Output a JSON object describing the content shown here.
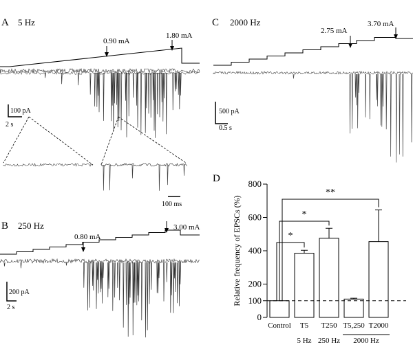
{
  "panels": {
    "a": {
      "letter": "A",
      "freq": "5 Hz",
      "current_low": "0.90 mA",
      "current_high": "1.80 mA",
      "scale_current": "100 pA",
      "scale_time": "2 s",
      "inset_scale": "100 ms"
    },
    "b": {
      "letter": "B",
      "freq": "250 Hz",
      "current_low": "0.80 mA",
      "current_high": "3.00 mA",
      "scale_current": "200 pA",
      "scale_time": "2 s"
    },
    "c": {
      "letter": "C",
      "freq": "2000 Hz",
      "current_low": "2.75 mA",
      "current_high": "3.70 mA",
      "scale_current": "500 pA",
      "scale_time": "0.5 s"
    },
    "d": {
      "letter": "D"
    }
  },
  "chart_data": {
    "type": "bar",
    "ylabel": "Relative frequency of EPSCs (%)",
    "ylim": [
      0,
      800
    ],
    "yticks": [
      0,
      100,
      200,
      400,
      600,
      800
    ],
    "categories": [
      "Control",
      "T5",
      "T250",
      "T5,250",
      "T2000"
    ],
    "values": [
      100,
      385,
      475,
      110,
      455
    ],
    "errors": [
      0,
      18,
      60,
      5,
      190
    ],
    "reference_line": 100,
    "group_labels": [
      {
        "text": "5 Hz",
        "categories": [
          "T5"
        ]
      },
      {
        "text": "250 Hz",
        "categories": [
          "T250"
        ]
      },
      {
        "text": "2000 Hz",
        "categories": [
          "T5,250",
          "T2000"
        ]
      }
    ],
    "significance": [
      {
        "from": "Control",
        "to": "T5",
        "label": "*"
      },
      {
        "from": "Control",
        "to": "T250",
        "label": "*"
      },
      {
        "from": "Control",
        "to": "T2000",
        "label": "**"
      }
    ]
  }
}
